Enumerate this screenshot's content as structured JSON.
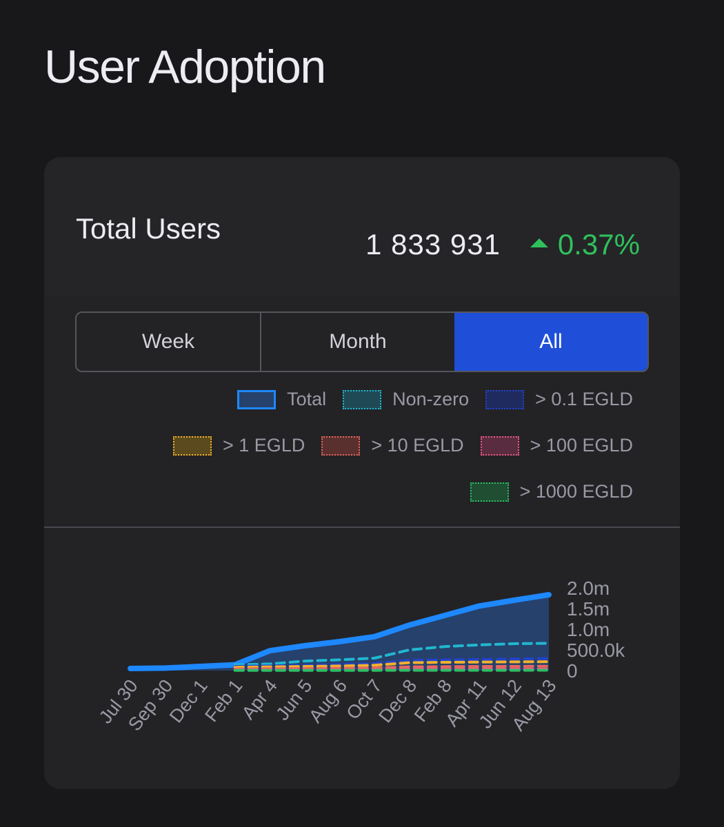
{
  "page": {
    "title": "User Adoption"
  },
  "metric": {
    "label": "Total Users",
    "value": "1 833 931",
    "change": "0.37%",
    "change_icon": "triangle-up-icon",
    "change_color": "#2fc25b"
  },
  "range_tabs": [
    {
      "label": "Week",
      "selected": false
    },
    {
      "label": "Month",
      "selected": false
    },
    {
      "label": "All",
      "selected": true
    }
  ],
  "colors": {
    "accent": "#1f4fd9",
    "background": "#18181b",
    "card": "#232326"
  },
  "chart_data": {
    "type": "line",
    "x_tick_labels": [
      "Jul 30",
      "Sep 30",
      "Dec 1",
      "Feb 1",
      "Apr 4",
      "Jun 5",
      "Aug 6",
      "Oct 7",
      "Dec 8",
      "Feb 8",
      "Apr 11",
      "Jun 12",
      "Aug 13"
    ],
    "y_tick_labels": [
      "0",
      "500.0k",
      "1.0m",
      "1.5m",
      "2.0m"
    ],
    "y_ticks": [
      0,
      500000,
      1000000,
      1500000,
      2000000
    ],
    "ylim": [
      0,
      2000000
    ],
    "y_axis_position": "right",
    "legend_position": "top-right",
    "grid": false,
    "series": [
      {
        "name": "Total",
        "color": "#1e88ff",
        "fill": "#26416b",
        "style": "solid",
        "values": [
          50000,
          60000,
          100000,
          140000,
          480000,
          600000,
          700000,
          820000,
          1100000,
          1330000,
          1560000,
          1700000,
          1833931
        ]
      },
      {
        "name": "Non-zero",
        "color": "#21b7d0",
        "fill": "#1f4a55",
        "style": "dashed",
        "values": [
          null,
          null,
          null,
          140000,
          160000,
          230000,
          260000,
          300000,
          500000,
          580000,
          620000,
          650000,
          660000
        ]
      },
      {
        "name": "> 0.1 EGLD",
        "color": "#2342c8",
        "fill": "#1f2b5e",
        "style": "dashed",
        "values": [
          null,
          null,
          null,
          100000,
          110000,
          130000,
          150000,
          170000,
          250000,
          260000,
          270000,
          280000,
          290000
        ]
      },
      {
        "name": "> 1 EGLD",
        "color": "#f2b12c",
        "fill": "#5a4a1e",
        "style": "dashed",
        "values": [
          null,
          null,
          null,
          80000,
          90000,
          100000,
          110000,
          130000,
          190000,
          200000,
          205000,
          210000,
          215000
        ]
      },
      {
        "name": "> 10 EGLD",
        "color": "#e5675d",
        "fill": "#5a302f",
        "style": "dashed",
        "values": [
          null,
          null,
          null,
          40000,
          45000,
          50000,
          55000,
          65000,
          90000,
          95000,
          100000,
          102000,
          105000
        ]
      },
      {
        "name": "> 100 EGLD",
        "color": "#ec5b85",
        "fill": "#5a2c3f",
        "style": "dashed",
        "values": [
          null,
          null,
          null,
          15000,
          16000,
          18000,
          20000,
          23000,
          30000,
          32000,
          33000,
          34000,
          35000
        ]
      },
      {
        "name": "> 1000 EGLD",
        "color": "#2cbf63",
        "fill": "#1f4e33",
        "style": "dashed",
        "values": [
          null,
          null,
          null,
          4000,
          4200,
          4500,
          5000,
          5500,
          6500,
          7000,
          7200,
          7400,
          7600
        ]
      }
    ]
  }
}
